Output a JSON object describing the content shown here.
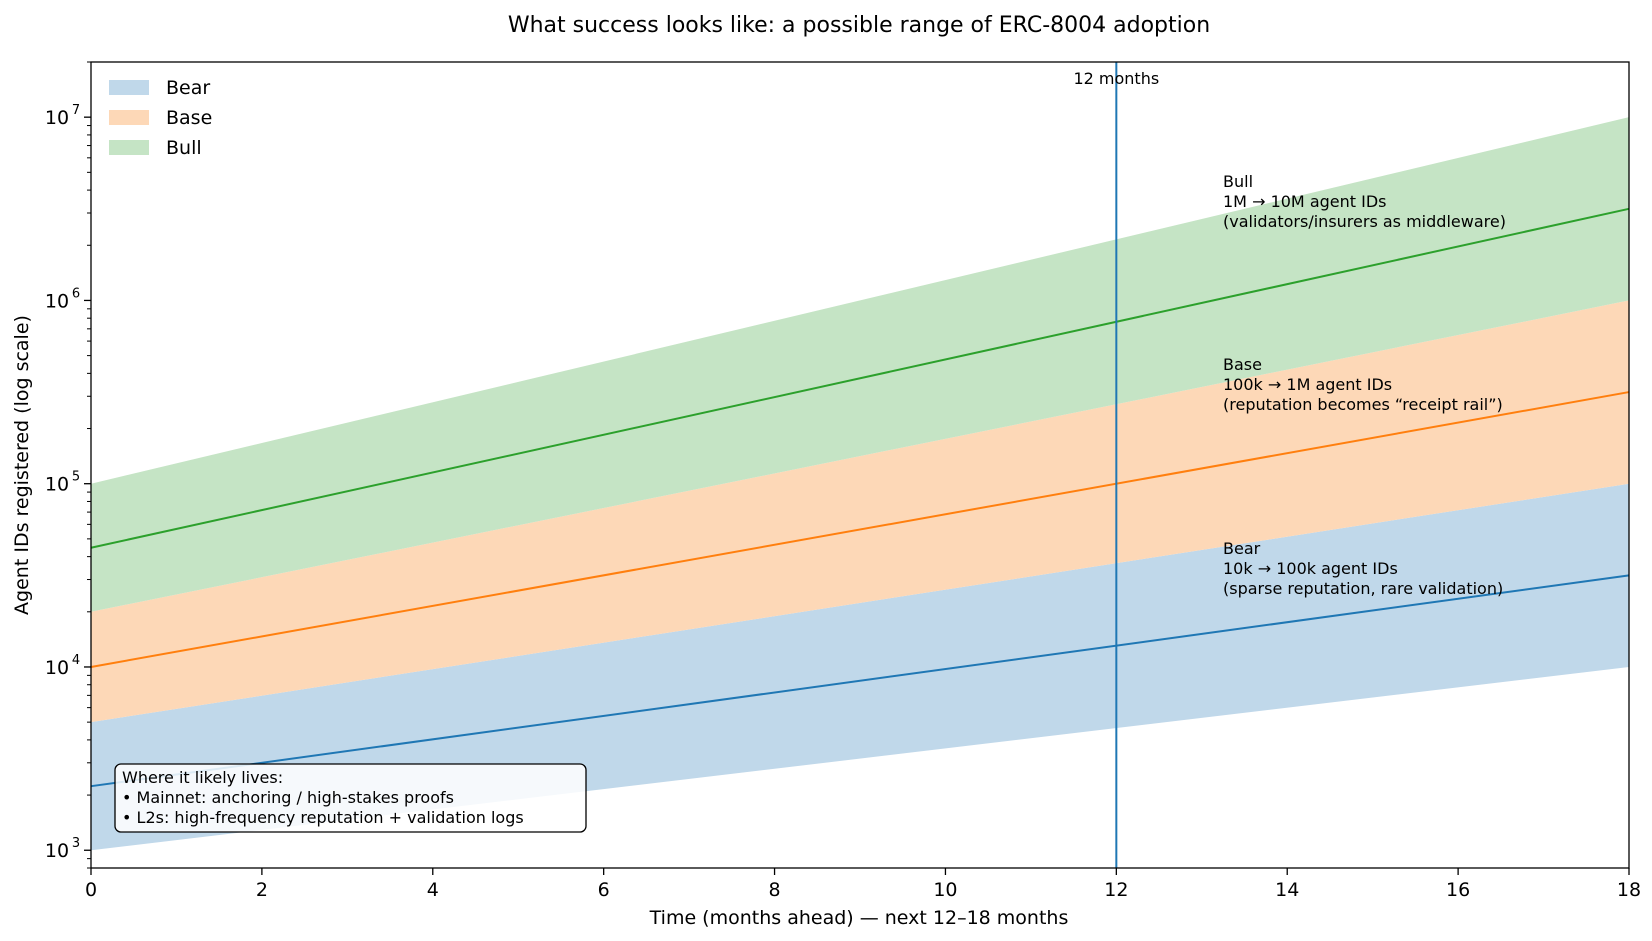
{
  "chart_data": {
    "type": "area",
    "title": "What success looks like: a possible range of ERC-8004 adoption",
    "xlabel": "Time (months ahead) — next 12–18 months",
    "ylabel": "Agent IDs registered (log scale)",
    "xlim": [
      0,
      18
    ],
    "ylim": [
      800,
      20000000
    ],
    "yscale": "log",
    "x_ticks": [
      0,
      2,
      4,
      6,
      8,
      10,
      12,
      14,
      16,
      18
    ],
    "y_ticks": [
      1000,
      10000,
      100000,
      1000000,
      10000000
    ],
    "y_tick_labels": [
      {
        "base": "10",
        "exp": "3"
      },
      {
        "base": "10",
        "exp": "4"
      },
      {
        "base": "10",
        "exp": "5"
      },
      {
        "base": "10",
        "exp": "6"
      },
      {
        "base": "10",
        "exp": "7"
      }
    ],
    "grid": false,
    "legend_position": "top-left",
    "series": [
      {
        "name": "Bear",
        "band_fill": "#c0d8ea",
        "line_color": "#1f77b4",
        "lower": [
          1000,
          10000
        ],
        "upper": [
          5000,
          100000
        ],
        "center": [
          2236,
          31623
        ],
        "x": [
          0,
          18
        ]
      },
      {
        "name": "Base",
        "band_fill": "#fdd8b7",
        "line_color": "#ff7f0e",
        "lower": [
          5000,
          100000
        ],
        "upper": [
          20000,
          1000000
        ],
        "center": [
          10000,
          316228
        ],
        "x": [
          0,
          18
        ]
      },
      {
        "name": "Bull",
        "band_fill": "#c5e4c5",
        "line_color": "#2ca02c",
        "lower": [
          20000,
          1000000
        ],
        "upper": [
          100000,
          10000000
        ],
        "center": [
          44721,
          3162278
        ],
        "x": [
          0,
          18
        ]
      }
    ],
    "vline": {
      "x": 12,
      "label": "12 months",
      "color": "#1f77b4"
    },
    "annotations": [
      {
        "lines": [
          "Bull",
          "1M → 10M agent IDs",
          "(validators/insurers as middleware)"
        ]
      },
      {
        "lines": [
          "Base",
          "100k → 1M agent IDs",
          "(reputation becomes “receipt rail”)"
        ]
      },
      {
        "lines": [
          "Bear",
          "10k → 100k agent IDs",
          "(sparse reputation, rare validation)"
        ]
      }
    ],
    "note_box": {
      "lines": [
        "Where it likely lives:",
        "• Mainnet: anchoring / high-stakes proofs",
        "• L2s: high-frequency reputation + validation logs"
      ]
    }
  }
}
